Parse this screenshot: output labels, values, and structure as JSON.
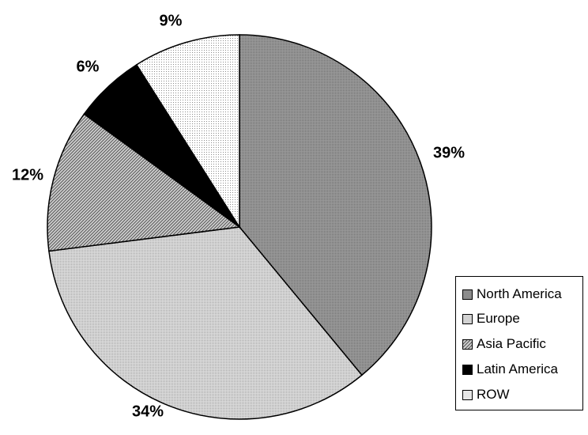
{
  "chart_data": {
    "type": "pie",
    "title": "",
    "start_angle_deg": 0,
    "direction": "clockwise",
    "legend_position": "right-bottom",
    "slices": [
      {
        "label": "North America",
        "value": 39,
        "value_label": "39%",
        "fill": "#8c8c8c",
        "pattern": "fine-dots-dark"
      },
      {
        "label": "Europe",
        "value": 34,
        "value_label": "34%",
        "fill": "#c8c8c8",
        "pattern": "fine-dots-light"
      },
      {
        "label": "Asia Pacific",
        "value": 12,
        "value_label": "12%",
        "fill": "#a8a8a8",
        "pattern": "diagonal-hatch"
      },
      {
        "label": "Latin America",
        "value": 6,
        "value_label": "6%",
        "fill": "#000000",
        "pattern": "solid"
      },
      {
        "label": "ROW",
        "value": 9,
        "value_label": "9%",
        "fill": "#f0f0f0",
        "pattern": "sparse-dots"
      }
    ]
  }
}
